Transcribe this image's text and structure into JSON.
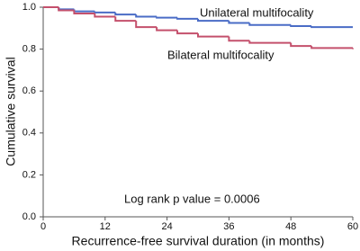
{
  "chart_data": {
    "type": "step",
    "xlabel": "Recurrence-free survival duration (in months)",
    "ylabel": "Cumulative survival",
    "annotation": "Log rank p value = 0.0006",
    "x": [
      0,
      3,
      6,
      10,
      14,
      18,
      22,
      26,
      30,
      36,
      40,
      48,
      52,
      60
    ],
    "series": [
      {
        "name": "Unilateral multifocality",
        "color": "#4a6cc6",
        "values": [
          1.0,
          0.99,
          0.98,
          0.975,
          0.965,
          0.955,
          0.95,
          0.945,
          0.935,
          0.925,
          0.915,
          0.91,
          0.905,
          0.905
        ]
      },
      {
        "name": "Bilateral multifocality",
        "color": "#c4506c",
        "values": [
          1.0,
          0.985,
          0.97,
          0.955,
          0.935,
          0.905,
          0.89,
          0.875,
          0.86,
          0.84,
          0.83,
          0.815,
          0.805,
          0.8
        ]
      }
    ],
    "xlim": [
      0,
      60
    ],
    "xticks": [
      0,
      12,
      24,
      36,
      48,
      60
    ],
    "ylim": [
      0,
      1
    ],
    "yticks": [
      {
        "value": 0,
        "label": "0.0"
      },
      0.2,
      0.4,
      0.6,
      0.8,
      {
        "value": 1,
        "label": "1.0"
      }
    ],
    "grid": false
  }
}
